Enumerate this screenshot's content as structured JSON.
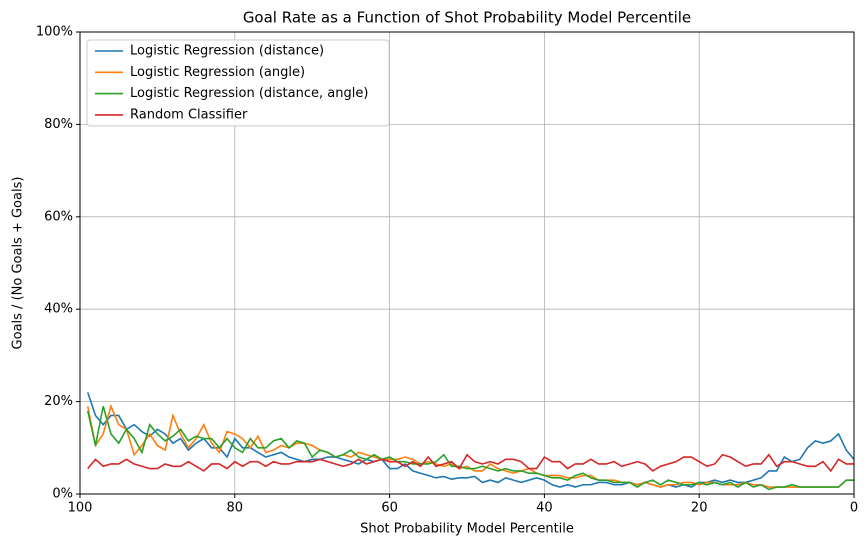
{
  "chart_data": {
    "type": "line",
    "title": "Goal Rate as a Function of Shot Probability Model Percentile",
    "x_label": "Shot Probability Model Percentile",
    "y_label": "Goals / (No Goals + Goals)",
    "x": [
      99,
      98,
      97,
      96,
      95,
      94,
      93,
      92,
      91,
      90,
      89,
      88,
      87,
      86,
      85,
      84,
      83,
      82,
      81,
      80,
      79,
      78,
      77,
      76,
      75,
      74,
      73,
      72,
      71,
      70,
      69,
      68,
      67,
      66,
      65,
      64,
      63,
      62,
      61,
      60,
      59,
      58,
      57,
      56,
      55,
      54,
      53,
      52,
      51,
      50,
      49,
      48,
      47,
      46,
      45,
      44,
      43,
      42,
      41,
      40,
      39,
      38,
      37,
      36,
      35,
      34,
      33,
      32,
      31,
      30,
      29,
      28,
      27,
      26,
      25,
      24,
      23,
      22,
      21,
      20,
      19,
      18,
      17,
      16,
      15,
      14,
      13,
      12,
      11,
      10,
      9,
      8,
      7,
      6,
      5,
      4,
      3,
      2,
      1,
      0
    ],
    "series": [
      {
        "name": "Logistic Regression (distance)",
        "color": "#1f77b4",
        "values": [
          22,
          17,
          15,
          17,
          17,
          14,
          15,
          13.5,
          12.5,
          14,
          13,
          11,
          12,
          9.5,
          11,
          12,
          10,
          10,
          8,
          12,
          10,
          10,
          9,
          8,
          8.5,
          9,
          8,
          7.5,
          7,
          7.5,
          7.5,
          8,
          8,
          7.5,
          7,
          6.5,
          7.5,
          7,
          7.5,
          5.5,
          5.5,
          6.5,
          5,
          4.5,
          4,
          3.5,
          3.8,
          3.2,
          3.5,
          3.5,
          3.8,
          2.5,
          3,
          2.5,
          3.5,
          3,
          2.5,
          3,
          3.5,
          3,
          2,
          1.5,
          2,
          1.5,
          2,
          2,
          2.5,
          2.5,
          2,
          2,
          2.5,
          2,
          2.5,
          2,
          1.5,
          2,
          1.5,
          2,
          1.5,
          2.5,
          2.5,
          3,
          2.5,
          3,
          2.5,
          2.5,
          3,
          3.5,
          5,
          5,
          8,
          7,
          7.5,
          10,
          11.5,
          11,
          11.5,
          13,
          9.5,
          7.5
        ]
      },
      {
        "name": "Logistic Regression (angle)",
        "color": "#ff7f0e",
        "values": [
          19,
          10.5,
          13,
          19,
          15,
          14,
          8.5,
          10.5,
          13,
          10.5,
          9.5,
          17,
          13,
          10,
          12,
          15,
          11,
          9,
          13.5,
          13,
          12,
          10,
          12.5,
          9,
          9.5,
          10.5,
          10,
          11,
          11,
          10.5,
          9.5,
          9,
          8,
          8.5,
          8,
          9,
          8.5,
          8,
          7.5,
          7.5,
          7.5,
          8,
          7.5,
          6.5,
          7,
          6.5,
          6,
          6.5,
          5.5,
          6,
          5,
          5,
          6.5,
          5.5,
          5,
          4.5,
          5,
          5.5,
          4.5,
          4,
          4,
          4,
          3.5,
          3.5,
          4,
          4,
          3,
          3,
          3,
          2.5,
          2.5,
          2,
          2.5,
          2,
          1.5,
          2,
          2,
          2.5,
          2.5,
          2,
          2.5,
          2.5,
          2,
          2,
          2,
          2.5,
          2,
          2,
          1.5,
          1.5,
          1.5,
          1.5,
          1.5,
          1.5,
          1.5,
          1.5,
          1.5,
          1.5,
          3,
          3
        ]
      },
      {
        "name": "Logistic Regression (distance, angle)",
        "color": "#2ca02c",
        "values": [
          18,
          10.5,
          19,
          13,
          11,
          14,
          12,
          9,
          15,
          13,
          11.5,
          12.5,
          14,
          11.5,
          12.5,
          12,
          12,
          10,
          12,
          10,
          9,
          12,
          10,
          10,
          11.5,
          12,
          10,
          11.5,
          11,
          8,
          9.5,
          9,
          8,
          8.5,
          9.5,
          8,
          7.5,
          8.5,
          7.5,
          8,
          7,
          7,
          6.5,
          6.5,
          6.5,
          7,
          8.5,
          6,
          6,
          5.5,
          5.5,
          6,
          5.5,
          5,
          5.5,
          5,
          5,
          4.5,
          4.5,
          4,
          3.5,
          3.5,
          3,
          4,
          4.5,
          3.5,
          3,
          3,
          2.5,
          2.5,
          2.5,
          1.5,
          2.5,
          3,
          2,
          3,
          2.5,
          2,
          2,
          2.5,
          2,
          2.5,
          2,
          2.5,
          1.5,
          2.5,
          1.5,
          2,
          1,
          1.5,
          1.5,
          2,
          1.5,
          1.5,
          1.5,
          1.5,
          1.5,
          1.5,
          3,
          3
        ]
      },
      {
        "name": "Random Classifier",
        "color": "#d62728",
        "values": [
          5.5,
          7.5,
          6,
          6.5,
          6.5,
          7.5,
          6.5,
          6,
          5.5,
          5.5,
          6.5,
          6,
          6,
          7,
          6,
          5,
          6.5,
          6.5,
          5.5,
          7,
          6,
          7,
          7,
          6,
          7,
          6.5,
          6.5,
          7,
          7,
          7,
          7.5,
          7,
          6.5,
          6,
          6.5,
          7.5,
          6.5,
          7,
          7.5,
          7,
          7,
          6,
          7,
          6,
          8,
          6,
          6.5,
          7,
          5.5,
          8.5,
          7,
          6.5,
          7,
          6.5,
          7.5,
          7.5,
          7,
          5.5,
          5.5,
          8,
          7,
          7,
          5.5,
          6.5,
          6.5,
          7.5,
          6.5,
          6.5,
          7,
          6,
          6.5,
          7,
          6.5,
          5,
          6,
          6.5,
          7,
          8,
          8,
          7,
          6,
          6.5,
          8.5,
          8,
          7,
          6,
          6.5,
          6.5,
          8.5,
          6,
          7,
          7,
          6.5,
          6,
          6,
          7,
          5,
          7.5,
          6.5,
          6.5
        ]
      }
    ],
    "xlim": [
      100,
      0
    ],
    "ylim": [
      0,
      100
    ],
    "xticks": [
      100,
      80,
      60,
      40,
      20,
      0
    ],
    "yticks": [
      {
        "value": 0,
        "label": "0%"
      },
      {
        "value": 20,
        "label": "20%"
      },
      {
        "value": 40,
        "label": "40%"
      },
      {
        "value": 60,
        "label": "60%"
      },
      {
        "value": 80,
        "label": "80%"
      },
      {
        "value": 100,
        "label": "100%"
      }
    ],
    "grid": true,
    "legend": "upper left"
  }
}
